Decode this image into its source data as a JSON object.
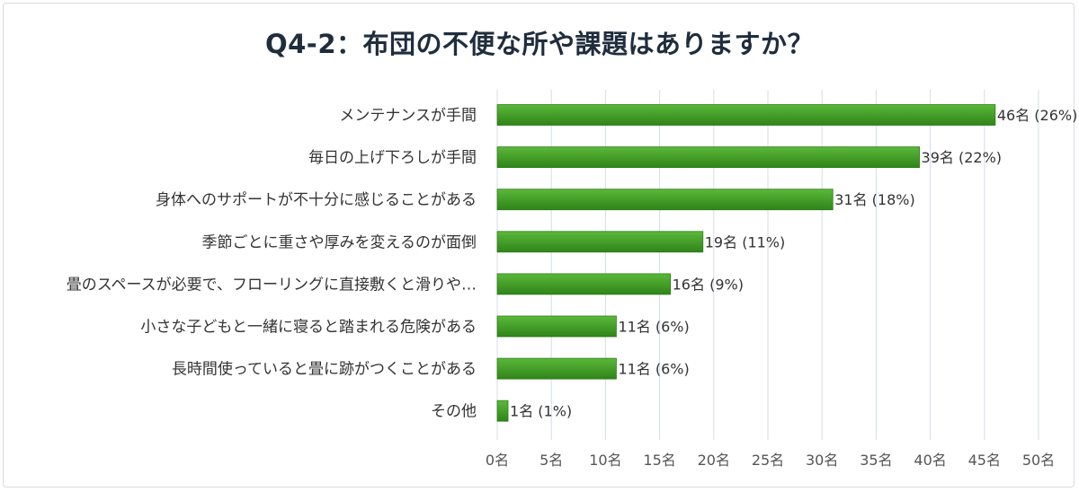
{
  "title": "Q4-2：布団の不便な所や課題はありますか？",
  "chart_data": {
    "type": "bar",
    "orientation": "horizontal",
    "categories": [
      "メンテナンスが手間",
      "毎日の上げ下ろしが手間",
      "身体へのサポートが不十分に感じることがある",
      "季節ごとに重さや厚みを変えるのが面倒",
      "畳のスペースが必要で、フローリングに直接敷くと滑りや…",
      "小さな子どもと一緒に寝ると踏まれる危険がある",
      "長時間使っていると畳に跡がつくことがある",
      "その他"
    ],
    "values": [
      46,
      39,
      31,
      19,
      16,
      11,
      11,
      1
    ],
    "value_labels": [
      "46名 (26%)",
      "39名 (22%)",
      "31名 (18%)",
      "19名 (11%)",
      "16名 (9%)",
      "11名 (6%)",
      "11名 (6%)",
      "1名 (1%)"
    ],
    "xlim": [
      0,
      50
    ],
    "x_ticks": [
      "0名",
      "5名",
      "10名",
      "15名",
      "20名",
      "25名",
      "30名",
      "35名",
      "40名",
      "45名",
      "50名"
    ],
    "grid": true,
    "legend": "none",
    "colors": {
      "bar": "#3f9a22",
      "bar_dark": "#2e7d17",
      "grid": "#d4dde6"
    }
  }
}
